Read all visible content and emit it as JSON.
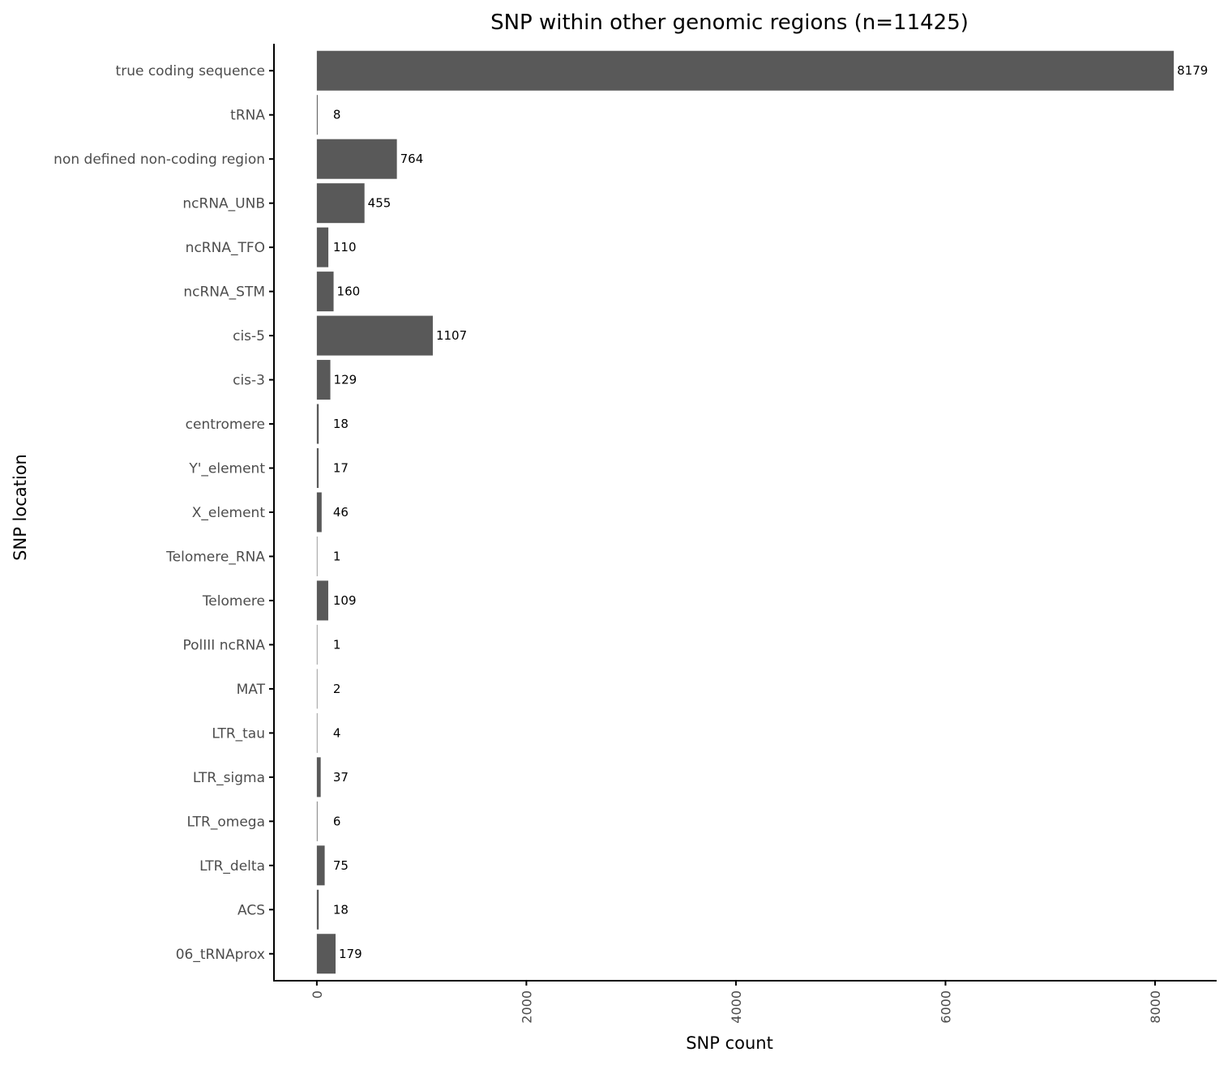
{
  "chart_data": {
    "type": "bar",
    "orientation": "horizontal",
    "title": "SNP within other genomic regions (n=11425)",
    "xlabel": "SNP count",
    "ylabel": "SNP location",
    "categories": [
      "true coding sequence",
      "tRNA",
      "non defined non-coding region",
      "ncRNA_UNB",
      "ncRNA_TFO",
      "ncRNA_STM",
      "cis-5",
      "cis-3",
      "centromere",
      "Y'_element",
      "X_element",
      "Telomere_RNA",
      "Telomere",
      "PolIII ncRNA",
      "MAT",
      "LTR_tau",
      "LTR_sigma",
      "LTR_omega",
      "LTR_delta",
      "ACS",
      "06_tRNAprox"
    ],
    "values": [
      8179,
      8,
      764,
      455,
      110,
      160,
      1107,
      129,
      18,
      17,
      46,
      1,
      109,
      1,
      2,
      4,
      37,
      6,
      75,
      18,
      179
    ],
    "value_labels": [
      "8179",
      "8",
      "764",
      "455",
      "110",
      "160",
      "1107",
      "129",
      "18",
      "17",
      "46",
      "1",
      "109",
      "1",
      "2",
      "4",
      "37",
      "6",
      "75",
      "18",
      "179"
    ],
    "xticks": [
      0,
      2000,
      4000,
      6000,
      8000
    ],
    "xtick_labels": [
      "0",
      "2000",
      "4000",
      "6000",
      "8000"
    ],
    "xlim": [
      -409,
      8588
    ],
    "grid": false,
    "bar_color": "#595959"
  }
}
